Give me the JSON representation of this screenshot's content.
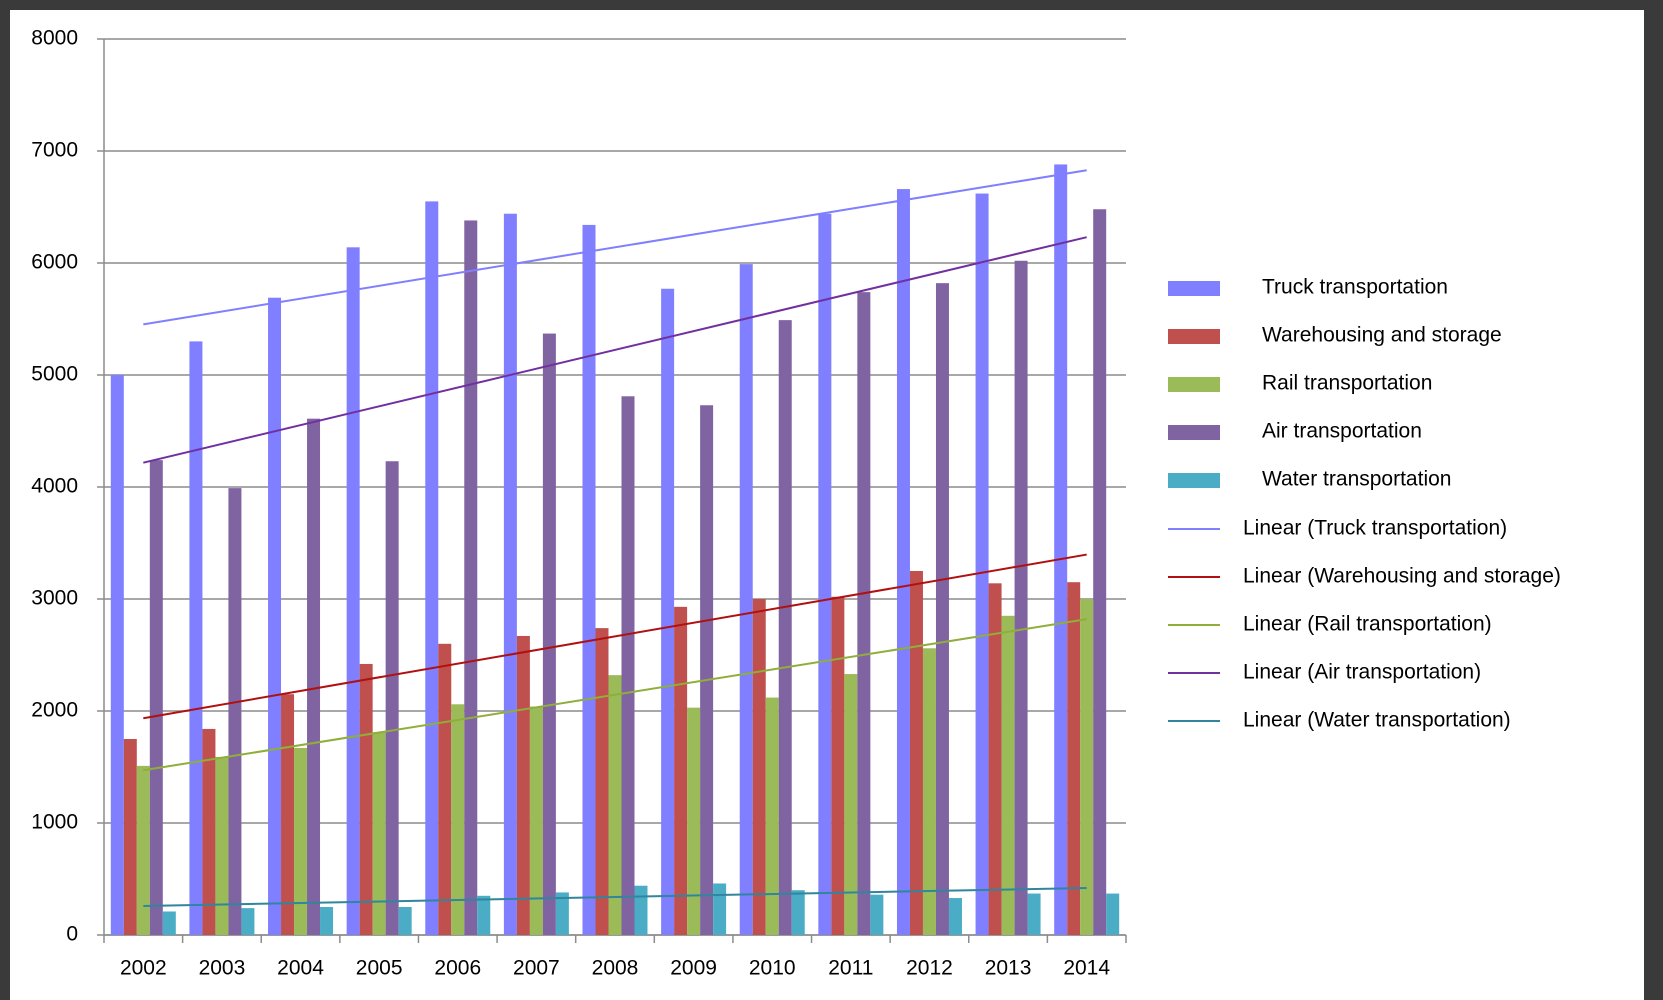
{
  "chart_data": {
    "type": "bar",
    "categories": [
      "2002",
      "2003",
      "2004",
      "2005",
      "2006",
      "2007",
      "2008",
      "2009",
      "2010",
      "2011",
      "2012",
      "2013",
      "2014"
    ],
    "series": [
      {
        "name": "Truck transportation",
        "color": "#7f7fff",
        "trendline_name": "Linear (Truck transportation)",
        "trendline_color": "#7f7fff",
        "values": [
          5000,
          5300,
          5690,
          6140,
          6550,
          6440,
          6340,
          5770,
          5990,
          6440,
          6660,
          6620,
          6880
        ]
      },
      {
        "name": "Warehousing and storage",
        "color": "#c0504d",
        "trendline_name": "Linear (Warehousing and storage)",
        "trendline_color": "#b01010",
        "values": [
          1750,
          1840,
          2150,
          2420,
          2600,
          2670,
          2740,
          2930,
          3000,
          3020,
          3250,
          3140,
          3150
        ]
      },
      {
        "name": "Rail transportation",
        "color": "#9bbb59",
        "trendline_name": "Linear (Rail transportation)",
        "trendline_color": "#8fae3a",
        "values": [
          1510,
          1590,
          1670,
          1810,
          2060,
          2040,
          2320,
          2030,
          2120,
          2330,
          2560,
          2850,
          3000
        ]
      },
      {
        "name": "Air transportation",
        "color": "#8064a2",
        "trendline_name": "Linear (Air transportation)",
        "trendline_color": "#7030a0",
        "values": [
          4240,
          3990,
          4610,
          4230,
          6380,
          5370,
          4810,
          4730,
          5490,
          5740,
          5820,
          6020,
          6480
        ]
      },
      {
        "name": "Water transportation",
        "color": "#4bacc6",
        "trendline_name": "Linear (Water transportation)",
        "trendline_color": "#31859c",
        "values": [
          210,
          240,
          250,
          250,
          350,
          380,
          440,
          460,
          400,
          360,
          330,
          370,
          370
        ]
      }
    ],
    "ylim": [
      0,
      8000
    ],
    "yticks": [
      0,
      1000,
      2000,
      3000,
      4000,
      5000,
      6000,
      7000,
      8000
    ],
    "grid": true,
    "trendlines": "linear",
    "legend": "right"
  }
}
